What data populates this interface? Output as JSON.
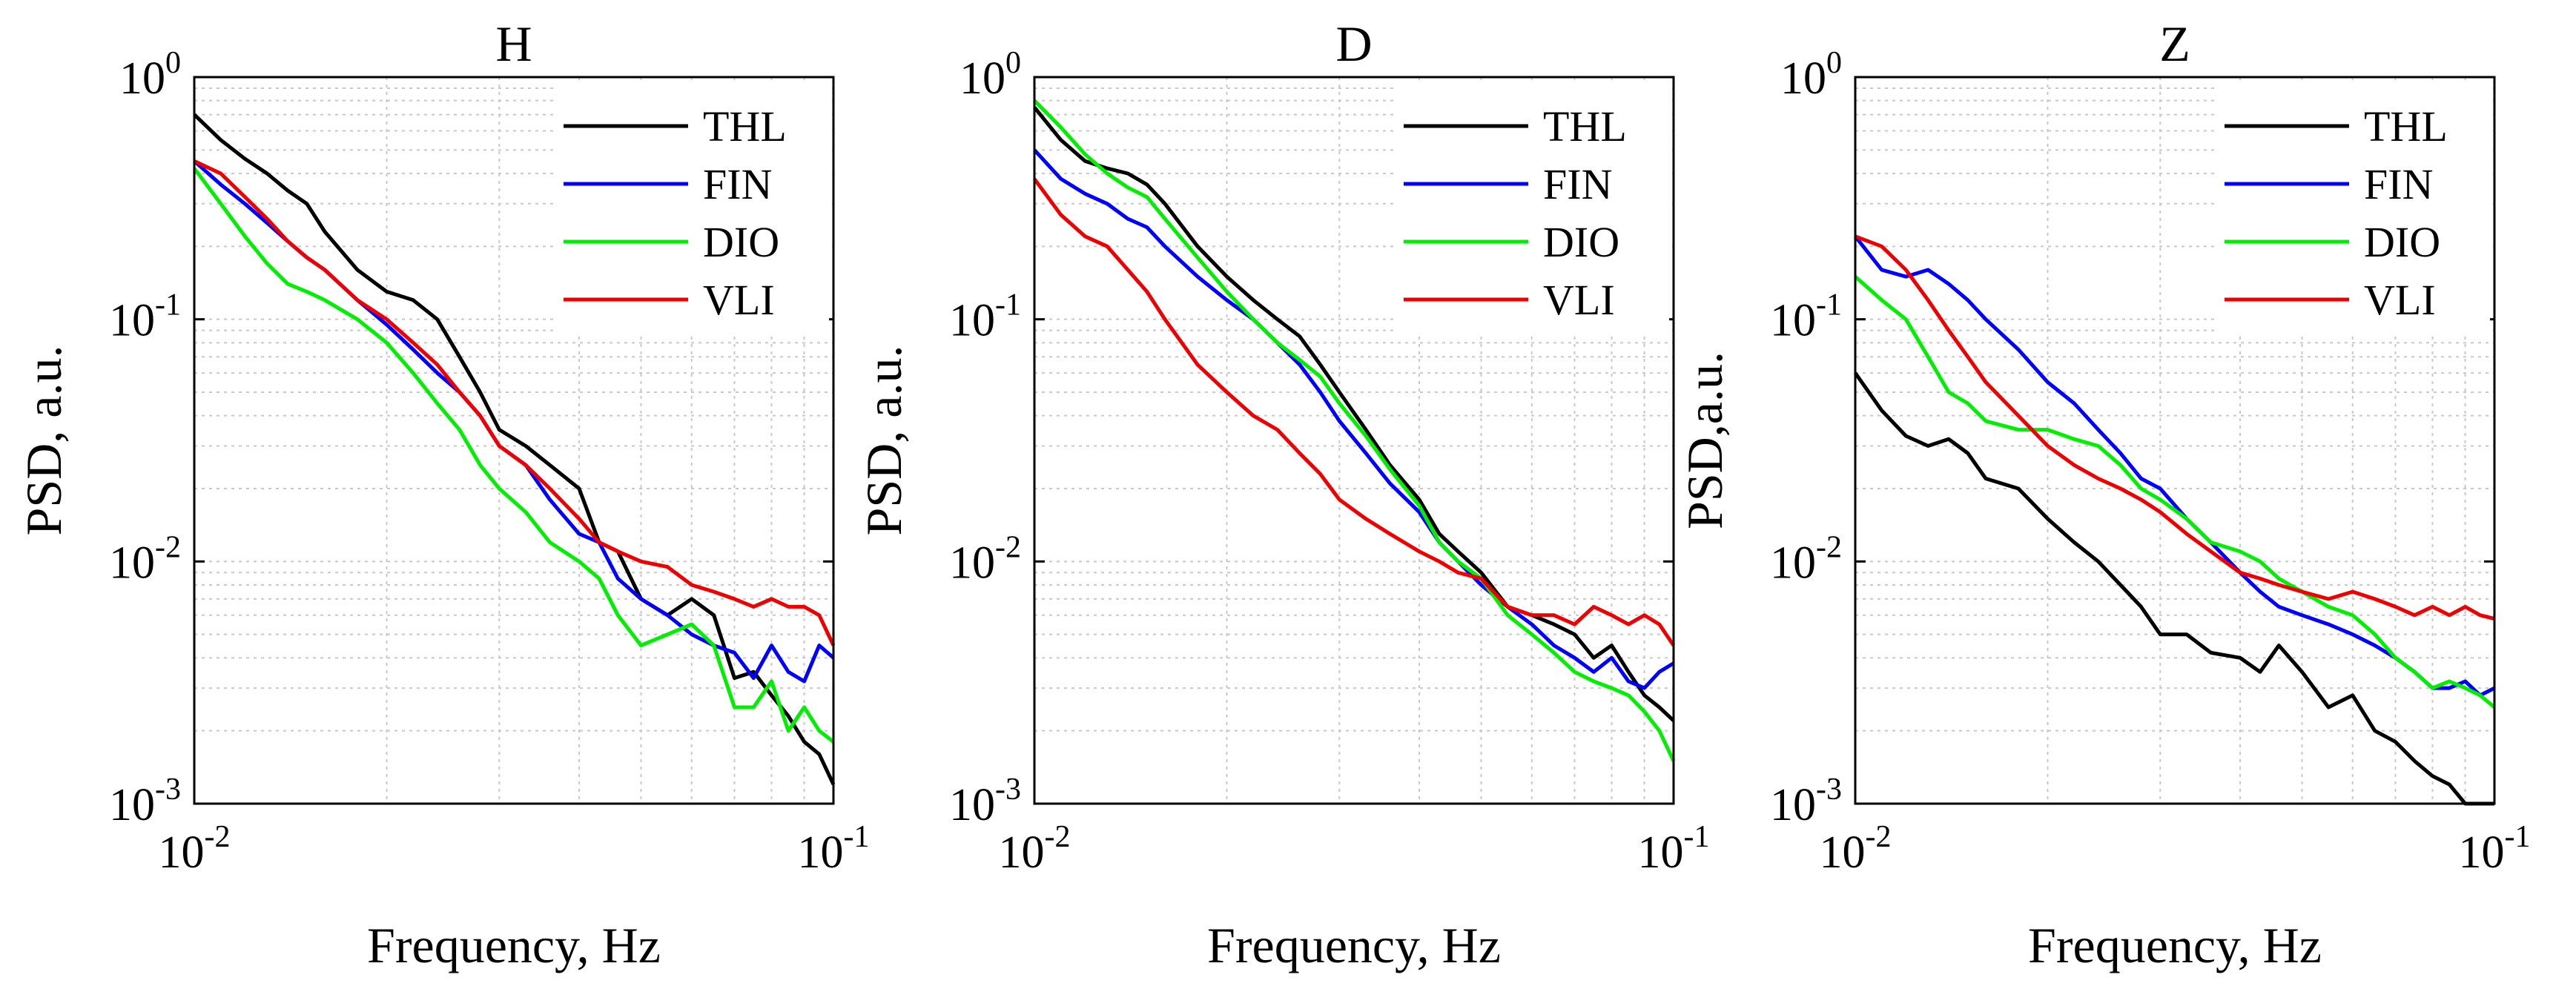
{
  "figure": {
    "name": "psd-comparison"
  },
  "chart_data": [
    {
      "type": "line",
      "title": "H",
      "xlabel": "Frequency, Hz",
      "ylabel": "PSD, a.u.",
      "xscale": "log",
      "yscale": "log",
      "xlim": [
        0.01,
        0.1
      ],
      "ylim": [
        0.001,
        1
      ],
      "xticks": [
        {
          "base": "10",
          "exp": "-2"
        },
        {
          "base": "10",
          "exp": "-1"
        }
      ],
      "yticks": [
        {
          "base": "10",
          "exp": "-3"
        },
        {
          "base": "10",
          "exp": "-2"
        },
        {
          "base": "10",
          "exp": "-1"
        },
        {
          "base": "10",
          "exp": "0"
        }
      ],
      "grid": true,
      "legend_position": "top-right",
      "series": [
        {
          "name": "THL",
          "color": "#000000",
          "x": [
            0.01,
            0.011,
            0.012,
            0.013,
            0.014,
            0.015,
            0.016,
            0.018,
            0.02,
            0.022,
            0.024,
            0.026,
            0.028,
            0.03,
            0.033,
            0.036,
            0.04,
            0.043,
            0.046,
            0.05,
            0.055,
            0.06,
            0.065,
            0.07,
            0.075,
            0.08,
            0.085,
            0.09,
            0.095,
            0.1
          ],
          "y": [
            0.7,
            0.55,
            0.46,
            0.4,
            0.34,
            0.3,
            0.23,
            0.16,
            0.13,
            0.12,
            0.1,
            0.07,
            0.05,
            0.035,
            0.03,
            0.025,
            0.02,
            0.012,
            0.011,
            0.007,
            0.006,
            0.007,
            0.006,
            0.0033,
            0.0035,
            0.0028,
            0.0023,
            0.0018,
            0.0016,
            0.0012
          ]
        },
        {
          "name": "FIN",
          "color": "#0000ff",
          "x": [
            0.01,
            0.011,
            0.012,
            0.013,
            0.014,
            0.015,
            0.016,
            0.018,
            0.02,
            0.022,
            0.024,
            0.026,
            0.028,
            0.03,
            0.033,
            0.036,
            0.04,
            0.043,
            0.046,
            0.05,
            0.055,
            0.06,
            0.065,
            0.07,
            0.075,
            0.08,
            0.085,
            0.09,
            0.095,
            0.1
          ],
          "y": [
            0.45,
            0.36,
            0.3,
            0.25,
            0.21,
            0.18,
            0.16,
            0.12,
            0.095,
            0.075,
            0.06,
            0.05,
            0.04,
            0.03,
            0.025,
            0.018,
            0.013,
            0.012,
            0.0085,
            0.007,
            0.006,
            0.005,
            0.0045,
            0.0042,
            0.0033,
            0.0045,
            0.0035,
            0.0032,
            0.0045,
            0.004
          ]
        },
        {
          "name": "DIO",
          "color": "#00ee00",
          "x": [
            0.01,
            0.011,
            0.012,
            0.013,
            0.014,
            0.015,
            0.016,
            0.018,
            0.02,
            0.022,
            0.024,
            0.026,
            0.028,
            0.03,
            0.033,
            0.036,
            0.04,
            0.043,
            0.046,
            0.05,
            0.055,
            0.06,
            0.065,
            0.07,
            0.075,
            0.08,
            0.085,
            0.09,
            0.095,
            0.1
          ],
          "y": [
            0.42,
            0.3,
            0.22,
            0.17,
            0.14,
            0.13,
            0.12,
            0.1,
            0.08,
            0.06,
            0.045,
            0.035,
            0.025,
            0.02,
            0.016,
            0.012,
            0.01,
            0.0085,
            0.006,
            0.0045,
            0.005,
            0.0055,
            0.0045,
            0.0025,
            0.0025,
            0.0032,
            0.002,
            0.0025,
            0.002,
            0.0018
          ]
        },
        {
          "name": "VLI",
          "color": "#ee0000",
          "x": [
            0.01,
            0.011,
            0.012,
            0.013,
            0.014,
            0.015,
            0.016,
            0.018,
            0.02,
            0.022,
            0.024,
            0.026,
            0.028,
            0.03,
            0.033,
            0.036,
            0.04,
            0.043,
            0.046,
            0.05,
            0.055,
            0.06,
            0.065,
            0.07,
            0.075,
            0.08,
            0.085,
            0.09,
            0.095,
            0.1
          ],
          "y": [
            0.45,
            0.4,
            0.32,
            0.26,
            0.21,
            0.18,
            0.16,
            0.12,
            0.1,
            0.08,
            0.065,
            0.05,
            0.04,
            0.03,
            0.025,
            0.02,
            0.015,
            0.012,
            0.011,
            0.01,
            0.0095,
            0.008,
            0.0075,
            0.007,
            0.0065,
            0.007,
            0.0065,
            0.0065,
            0.006,
            0.0045
          ]
        }
      ]
    },
    {
      "type": "line",
      "title": "D",
      "xlabel": "Frequency, Hz",
      "ylabel": "PSD, a.u.",
      "xscale": "log",
      "yscale": "log",
      "xlim": [
        0.01,
        0.1
      ],
      "ylim": [
        0.001,
        1
      ],
      "xticks": [
        {
          "base": "10",
          "exp": "-2"
        },
        {
          "base": "10",
          "exp": "-1"
        }
      ],
      "yticks": [
        {
          "base": "10",
          "exp": "-3"
        },
        {
          "base": "10",
          "exp": "-2"
        },
        {
          "base": "10",
          "exp": "-1"
        },
        {
          "base": "10",
          "exp": "0"
        }
      ],
      "grid": true,
      "legend_position": "top-right",
      "series": [
        {
          "name": "THL",
          "color": "#000000",
          "x": [
            0.01,
            0.011,
            0.012,
            0.013,
            0.014,
            0.015,
            0.016,
            0.018,
            0.02,
            0.022,
            0.024,
            0.026,
            0.028,
            0.03,
            0.033,
            0.036,
            0.04,
            0.043,
            0.046,
            0.05,
            0.055,
            0.06,
            0.065,
            0.07,
            0.075,
            0.08,
            0.085,
            0.09,
            0.095,
            0.1
          ],
          "y": [
            0.75,
            0.55,
            0.45,
            0.42,
            0.4,
            0.36,
            0.3,
            0.2,
            0.15,
            0.12,
            0.1,
            0.085,
            0.065,
            0.05,
            0.035,
            0.025,
            0.018,
            0.013,
            0.011,
            0.009,
            0.0065,
            0.006,
            0.0055,
            0.005,
            0.004,
            0.0045,
            0.0035,
            0.0028,
            0.0025,
            0.0022
          ]
        },
        {
          "name": "FIN",
          "color": "#0000ff",
          "x": [
            0.01,
            0.011,
            0.012,
            0.013,
            0.014,
            0.015,
            0.016,
            0.018,
            0.02,
            0.022,
            0.024,
            0.026,
            0.028,
            0.03,
            0.033,
            0.036,
            0.04,
            0.043,
            0.046,
            0.05,
            0.055,
            0.06,
            0.065,
            0.07,
            0.075,
            0.08,
            0.085,
            0.09,
            0.095,
            0.1
          ],
          "y": [
            0.5,
            0.38,
            0.33,
            0.3,
            0.26,
            0.24,
            0.2,
            0.15,
            0.12,
            0.1,
            0.08,
            0.065,
            0.05,
            0.038,
            0.028,
            0.021,
            0.016,
            0.012,
            0.01,
            0.008,
            0.0065,
            0.0055,
            0.0045,
            0.004,
            0.0035,
            0.004,
            0.0032,
            0.003,
            0.0035,
            0.0038
          ]
        },
        {
          "name": "DIO",
          "color": "#00ee00",
          "x": [
            0.01,
            0.011,
            0.012,
            0.013,
            0.014,
            0.015,
            0.016,
            0.018,
            0.02,
            0.022,
            0.024,
            0.026,
            0.028,
            0.03,
            0.033,
            0.036,
            0.04,
            0.043,
            0.046,
            0.05,
            0.055,
            0.06,
            0.065,
            0.07,
            0.075,
            0.08,
            0.085,
            0.09,
            0.095,
            0.1
          ],
          "y": [
            0.8,
            0.62,
            0.48,
            0.4,
            0.35,
            0.32,
            0.26,
            0.18,
            0.13,
            0.1,
            0.08,
            0.068,
            0.058,
            0.045,
            0.033,
            0.024,
            0.017,
            0.012,
            0.01,
            0.0085,
            0.006,
            0.005,
            0.0042,
            0.0035,
            0.0032,
            0.003,
            0.0028,
            0.0024,
            0.002,
            0.0015
          ]
        },
        {
          "name": "VLI",
          "color": "#ee0000",
          "x": [
            0.01,
            0.011,
            0.012,
            0.013,
            0.014,
            0.015,
            0.016,
            0.018,
            0.02,
            0.022,
            0.024,
            0.026,
            0.028,
            0.03,
            0.033,
            0.036,
            0.04,
            0.043,
            0.046,
            0.05,
            0.055,
            0.06,
            0.065,
            0.07,
            0.075,
            0.08,
            0.085,
            0.09,
            0.095,
            0.1
          ],
          "y": [
            0.38,
            0.27,
            0.22,
            0.2,
            0.16,
            0.13,
            0.1,
            0.065,
            0.05,
            0.04,
            0.035,
            0.028,
            0.023,
            0.018,
            0.015,
            0.013,
            0.011,
            0.01,
            0.009,
            0.0085,
            0.0065,
            0.006,
            0.006,
            0.0055,
            0.0065,
            0.006,
            0.0055,
            0.006,
            0.0055,
            0.0045
          ]
        }
      ]
    },
    {
      "type": "line",
      "title": "Z",
      "xlabel": "Frequency, Hz",
      "ylabel": "PSD,a.u.",
      "xscale": "log",
      "yscale": "log",
      "xlim": [
        0.01,
        0.1
      ],
      "ylim": [
        0.001,
        1
      ],
      "xticks": [
        {
          "base": "10",
          "exp": "-2"
        },
        {
          "base": "10",
          "exp": "-1"
        }
      ],
      "yticks": [
        {
          "base": "10",
          "exp": "-3"
        },
        {
          "base": "10",
          "exp": "-2"
        },
        {
          "base": "10",
          "exp": "-1"
        },
        {
          "base": "10",
          "exp": "0"
        }
      ],
      "grid": true,
      "legend_position": "top-right",
      "series": [
        {
          "name": "THL",
          "color": "#000000",
          "x": [
            0.01,
            0.011,
            0.012,
            0.013,
            0.014,
            0.015,
            0.016,
            0.018,
            0.02,
            0.022,
            0.024,
            0.026,
            0.028,
            0.03,
            0.033,
            0.036,
            0.04,
            0.043,
            0.046,
            0.05,
            0.055,
            0.06,
            0.065,
            0.07,
            0.075,
            0.08,
            0.085,
            0.09,
            0.095,
            0.1
          ],
          "y": [
            0.06,
            0.042,
            0.033,
            0.03,
            0.032,
            0.028,
            0.022,
            0.02,
            0.015,
            0.012,
            0.01,
            0.008,
            0.0065,
            0.005,
            0.005,
            0.0042,
            0.004,
            0.0035,
            0.0045,
            0.0035,
            0.0025,
            0.0028,
            0.002,
            0.0018,
            0.0015,
            0.0013,
            0.0012,
            0.001,
            0.001,
            0.001
          ]
        },
        {
          "name": "FIN",
          "color": "#0000ff",
          "x": [
            0.01,
            0.011,
            0.012,
            0.013,
            0.014,
            0.015,
            0.016,
            0.018,
            0.02,
            0.022,
            0.024,
            0.026,
            0.028,
            0.03,
            0.033,
            0.036,
            0.04,
            0.043,
            0.046,
            0.05,
            0.055,
            0.06,
            0.065,
            0.07,
            0.075,
            0.08,
            0.085,
            0.09,
            0.095,
            0.1
          ],
          "y": [
            0.22,
            0.16,
            0.15,
            0.16,
            0.14,
            0.12,
            0.1,
            0.075,
            0.055,
            0.045,
            0.035,
            0.028,
            0.022,
            0.02,
            0.015,
            0.012,
            0.009,
            0.0075,
            0.0065,
            0.006,
            0.0055,
            0.005,
            0.0045,
            0.004,
            0.0035,
            0.003,
            0.003,
            0.0032,
            0.0028,
            0.003
          ]
        },
        {
          "name": "DIO",
          "color": "#00ee00",
          "x": [
            0.01,
            0.011,
            0.012,
            0.013,
            0.014,
            0.015,
            0.016,
            0.018,
            0.02,
            0.022,
            0.024,
            0.026,
            0.028,
            0.03,
            0.033,
            0.036,
            0.04,
            0.043,
            0.046,
            0.05,
            0.055,
            0.06,
            0.065,
            0.07,
            0.075,
            0.08,
            0.085,
            0.09,
            0.095,
            0.1
          ],
          "y": [
            0.15,
            0.12,
            0.1,
            0.07,
            0.05,
            0.045,
            0.038,
            0.035,
            0.035,
            0.032,
            0.03,
            0.025,
            0.02,
            0.018,
            0.015,
            0.012,
            0.011,
            0.01,
            0.0085,
            0.0075,
            0.0065,
            0.006,
            0.005,
            0.004,
            0.0035,
            0.003,
            0.0032,
            0.003,
            0.0028,
            0.0025
          ]
        },
        {
          "name": "VLI",
          "color": "#ee0000",
          "x": [
            0.01,
            0.011,
            0.012,
            0.013,
            0.014,
            0.015,
            0.016,
            0.018,
            0.02,
            0.022,
            0.024,
            0.026,
            0.028,
            0.03,
            0.033,
            0.036,
            0.04,
            0.043,
            0.046,
            0.05,
            0.055,
            0.06,
            0.065,
            0.07,
            0.075,
            0.08,
            0.085,
            0.09,
            0.095,
            0.1
          ],
          "y": [
            0.22,
            0.2,
            0.16,
            0.12,
            0.09,
            0.07,
            0.055,
            0.04,
            0.03,
            0.025,
            0.022,
            0.02,
            0.018,
            0.016,
            0.013,
            0.011,
            0.009,
            0.0085,
            0.008,
            0.0075,
            0.007,
            0.0075,
            0.007,
            0.0065,
            0.006,
            0.0065,
            0.006,
            0.0065,
            0.006,
            0.0058
          ]
        }
      ]
    }
  ]
}
